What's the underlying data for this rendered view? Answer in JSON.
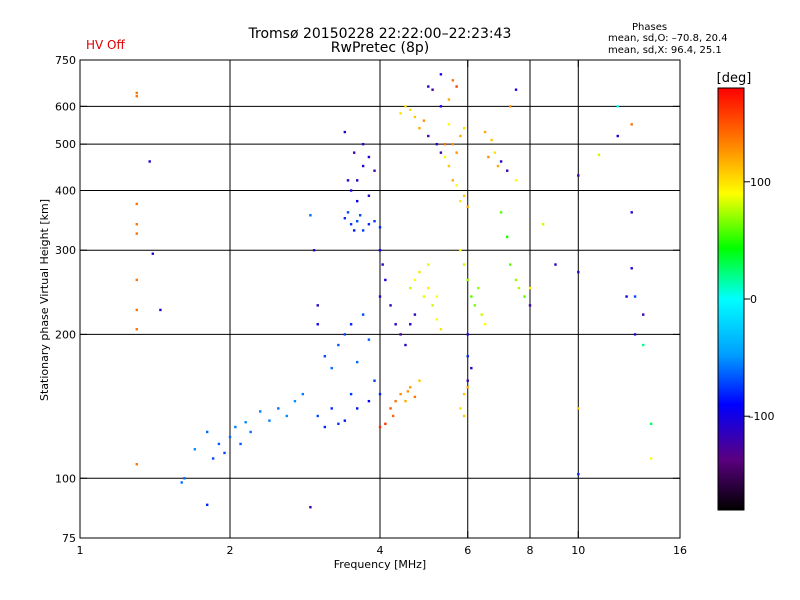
{
  "header": {
    "title_line1": "Tromsø 20150228 22:22:00–22:23:43",
    "title_line2": "RwPretec (8p)",
    "status": "HV Off",
    "stats_heading": "Phases",
    "stats_line1": "mean, sd,O: –70.8, 20.4",
    "stats_line2": "mean, sd,X:  96.4, 25.1"
  },
  "colors": {
    "status": "#e00000",
    "grid": "#000000",
    "colormap": [
      "#000000",
      "#5a0080",
      "#0000ff",
      "#00a0ff",
      "#00ffff",
      "#00ff00",
      "#ffff00",
      "#ff8000",
      "#ff0000"
    ]
  },
  "chart_data": {
    "type": "scatter",
    "scale": {
      "x": "log",
      "y": "log"
    },
    "xlabel": "Frequency [MHz]",
    "ylabel": "Stationary phase Virtual Height [km]",
    "xlim": [
      1,
      16
    ],
    "ylim": [
      75,
      750
    ],
    "xticks": [
      1,
      2,
      4,
      6,
      8,
      10,
      16
    ],
    "xtick_labels": [
      "1",
      "2",
      "4",
      "6",
      "8",
      "10",
      "16"
    ],
    "xgrid": [
      2,
      4,
      6,
      8,
      10
    ],
    "yticks": [
      75,
      100,
      200,
      300,
      400,
      500,
      600,
      750
    ],
    "ytick_labels": [
      "75",
      "100",
      "200",
      "300",
      "400",
      "500",
      "600",
      "750"
    ],
    "ygrid": [
      100,
      200,
      300,
      400,
      500,
      600
    ],
    "grid": true,
    "colorbar": {
      "label": "[deg]",
      "range": [
        -180,
        180
      ],
      "ticks": [
        100,
        0,
        -100
      ],
      "tick_labels": [
        "100",
        "0",
        "–100"
      ]
    },
    "series": [
      {
        "name": "",
        "points": [
          [
            1.3,
            640,
            140
          ],
          [
            1.3,
            630,
            140
          ],
          [
            1.3,
            375,
            140
          ],
          [
            1.3,
            340,
            140
          ],
          [
            1.3,
            325,
            140
          ],
          [
            1.3,
            260,
            140
          ],
          [
            1.3,
            225,
            140
          ],
          [
            1.3,
            205,
            140
          ],
          [
            1.3,
            107,
            140
          ],
          [
            1.38,
            460,
            -110
          ],
          [
            1.4,
            295,
            -110
          ],
          [
            1.45,
            225,
            -110
          ],
          [
            1.6,
            98,
            -60
          ],
          [
            1.62,
            100,
            -60
          ],
          [
            1.7,
            115,
            -50
          ],
          [
            1.8,
            125,
            -60
          ],
          [
            1.85,
            110,
            -70
          ],
          [
            1.9,
            118,
            -65
          ],
          [
            1.95,
            113,
            -70
          ],
          [
            2.0,
            122,
            -60
          ],
          [
            2.05,
            128,
            -55
          ],
          [
            2.1,
            118,
            -65
          ],
          [
            2.15,
            131,
            -50
          ],
          [
            2.2,
            125,
            -60
          ],
          [
            2.3,
            138,
            -55
          ],
          [
            2.4,
            132,
            -55
          ],
          [
            2.5,
            140,
            -60
          ],
          [
            2.6,
            135,
            -50
          ],
          [
            2.7,
            145,
            -50
          ],
          [
            2.8,
            150,
            -55
          ],
          [
            1.8,
            88,
            -80
          ],
          [
            2.9,
            87,
            -120
          ],
          [
            2.9,
            355,
            -60
          ],
          [
            2.95,
            300,
            -110
          ],
          [
            3.0,
            230,
            -110
          ],
          [
            3.0,
            210,
            -100
          ],
          [
            3.1,
            180,
            -70
          ],
          [
            3.2,
            170,
            -60
          ],
          [
            3.3,
            190,
            -65
          ],
          [
            3.4,
            200,
            -70
          ],
          [
            3.5,
            210,
            -80
          ],
          [
            3.6,
            175,
            -60
          ],
          [
            3.7,
            220,
            -70
          ],
          [
            3.8,
            195,
            -65
          ],
          [
            3.9,
            160,
            -75
          ],
          [
            4.0,
            150,
            -80
          ],
          [
            3.5,
            150,
            -75
          ],
          [
            3.6,
            140,
            -85
          ],
          [
            3.8,
            145,
            -90
          ],
          [
            3.2,
            140,
            -80
          ],
          [
            3.3,
            130,
            -75
          ],
          [
            3.0,
            135,
            -70
          ],
          [
            3.1,
            128,
            -80
          ],
          [
            3.4,
            132,
            -85
          ],
          [
            3.4,
            350,
            -80
          ],
          [
            3.5,
            340,
            -75
          ],
          [
            3.6,
            345,
            -70
          ],
          [
            3.7,
            330,
            -75
          ],
          [
            3.8,
            340,
            -80
          ],
          [
            3.9,
            345,
            -75
          ],
          [
            4.0,
            335,
            -80
          ],
          [
            3.45,
            360,
            -70
          ],
          [
            3.55,
            330,
            -85
          ],
          [
            3.65,
            355,
            -70
          ],
          [
            3.5,
            400,
            -100
          ],
          [
            3.6,
            420,
            -110
          ],
          [
            3.7,
            450,
            -110
          ],
          [
            3.8,
            470,
            -105
          ],
          [
            3.6,
            380,
            -95
          ],
          [
            3.8,
            390,
            -110
          ],
          [
            3.9,
            440,
            -120
          ],
          [
            3.55,
            480,
            -120
          ],
          [
            3.7,
            500,
            -115
          ],
          [
            3.4,
            530,
            -110
          ],
          [
            3.45,
            420,
            -105
          ],
          [
            4.0,
            300,
            -100
          ],
          [
            4.05,
            280,
            -110
          ],
          [
            4.1,
            260,
            -100
          ],
          [
            4.0,
            240,
            -110
          ],
          [
            4.2,
            230,
            -115
          ],
          [
            4.3,
            210,
            -110
          ],
          [
            4.4,
            200,
            -120
          ],
          [
            4.5,
            190,
            -110
          ],
          [
            4.6,
            210,
            -105
          ],
          [
            4.7,
            220,
            -115
          ],
          [
            4.2,
            140,
            150
          ],
          [
            4.3,
            145,
            140
          ],
          [
            4.4,
            150,
            130
          ],
          [
            4.5,
            145,
            120
          ],
          [
            4.6,
            155,
            125
          ],
          [
            4.7,
            148,
            140
          ],
          [
            4.8,
            160,
            110
          ],
          [
            4.25,
            135,
            145
          ],
          [
            4.55,
            152,
            130
          ],
          [
            4.1,
            130,
            160
          ],
          [
            4.0,
            128,
            165
          ],
          [
            4.6,
            250,
            80
          ],
          [
            4.7,
            260,
            90
          ],
          [
            4.8,
            270,
            100
          ],
          [
            4.9,
            240,
            85
          ],
          [
            5.0,
            250,
            95
          ],
          [
            5.1,
            230,
            80
          ],
          [
            5.2,
            215,
            90
          ],
          [
            5.3,
            205,
            100
          ],
          [
            5.2,
            240,
            90
          ],
          [
            5.0,
            280,
            85
          ],
          [
            4.5,
            600,
            100
          ],
          [
            4.6,
            590,
            100
          ],
          [
            4.7,
            570,
            110
          ],
          [
            4.8,
            540,
            120
          ],
          [
            4.9,
            560,
            130
          ],
          [
            4.4,
            580,
            100
          ],
          [
            5.0,
            520,
            -120
          ],
          [
            5.2,
            500,
            -110
          ],
          [
            5.3,
            480,
            -120
          ],
          [
            5.4,
            470,
            90
          ],
          [
            5.5,
            450,
            110
          ],
          [
            5.6,
            420,
            120
          ],
          [
            5.7,
            410,
            90
          ],
          [
            5.8,
            380,
            100
          ],
          [
            5.9,
            390,
            110
          ],
          [
            6.0,
            370,
            120
          ],
          [
            5.7,
            480,
            130
          ],
          [
            5.6,
            500,
            130
          ],
          [
            5.8,
            520,
            120
          ],
          [
            5.9,
            540,
            100
          ],
          [
            5.4,
            500,
            140
          ],
          [
            5.5,
            550,
            90
          ],
          [
            5.0,
            660,
            -110
          ],
          [
            5.1,
            650,
            -120
          ],
          [
            5.3,
            600,
            -100
          ],
          [
            5.6,
            680,
            140
          ],
          [
            5.7,
            660,
            160
          ],
          [
            5.5,
            620,
            120
          ],
          [
            5.3,
            700,
            -100
          ],
          [
            5.8,
            300,
            90
          ],
          [
            5.9,
            280,
            80
          ],
          [
            6.0,
            260,
            70
          ],
          [
            6.1,
            240,
            60
          ],
          [
            6.2,
            230,
            65
          ],
          [
            6.3,
            250,
            70
          ],
          [
            6.4,
            220,
            80
          ],
          [
            6.5,
            210,
            90
          ],
          [
            5.8,
            140,
            100
          ],
          [
            5.9,
            150,
            110
          ],
          [
            6.0,
            155,
            120
          ],
          [
            5.9,
            135,
            110
          ],
          [
            6.0,
            160,
            -120
          ],
          [
            6.1,
            170,
            -110
          ],
          [
            6.0,
            180,
            -80
          ],
          [
            6.5,
            530,
            120
          ],
          [
            6.7,
            510,
            110
          ],
          [
            6.8,
            480,
            100
          ],
          [
            7.0,
            460,
            -110
          ],
          [
            7.2,
            440,
            -120
          ],
          [
            6.6,
            470,
            130
          ],
          [
            6.9,
            450,
            120
          ],
          [
            7.5,
            420,
            90
          ],
          [
            7.0,
            360,
            60
          ],
          [
            7.2,
            320,
            50
          ],
          [
            7.3,
            280,
            60
          ],
          [
            7.5,
            260,
            70
          ],
          [
            7.8,
            240,
            60
          ],
          [
            8.0,
            230,
            -120
          ],
          [
            7.6,
            250,
            75
          ],
          [
            7.5,
            650,
            -100
          ],
          [
            7.3,
            600,
            130
          ],
          [
            8.5,
            340,
            80
          ],
          [
            8.0,
            250,
            90
          ],
          [
            9.0,
            280,
            -110
          ],
          [
            10.0,
            270,
            -110
          ],
          [
            10.0,
            430,
            -120
          ],
          [
            10.0,
            140,
            110
          ],
          [
            10.0,
            102,
            -80
          ],
          [
            11.0,
            475,
            80
          ],
          [
            12.0,
            520,
            -100
          ],
          [
            12.0,
            600,
            0
          ],
          [
            12.8,
            360,
            -110
          ],
          [
            12.8,
            275,
            -110
          ],
          [
            12.8,
            550,
            140
          ],
          [
            12.5,
            240,
            -100
          ],
          [
            13.0,
            240,
            -70
          ],
          [
            13.5,
            220,
            -120
          ],
          [
            13.5,
            190,
            20
          ],
          [
            14.0,
            130,
            30
          ],
          [
            14.0,
            110,
            90
          ],
          [
            13.0,
            200,
            -110
          ],
          [
            6.0,
            200,
            -110
          ]
        ]
      }
    ]
  }
}
